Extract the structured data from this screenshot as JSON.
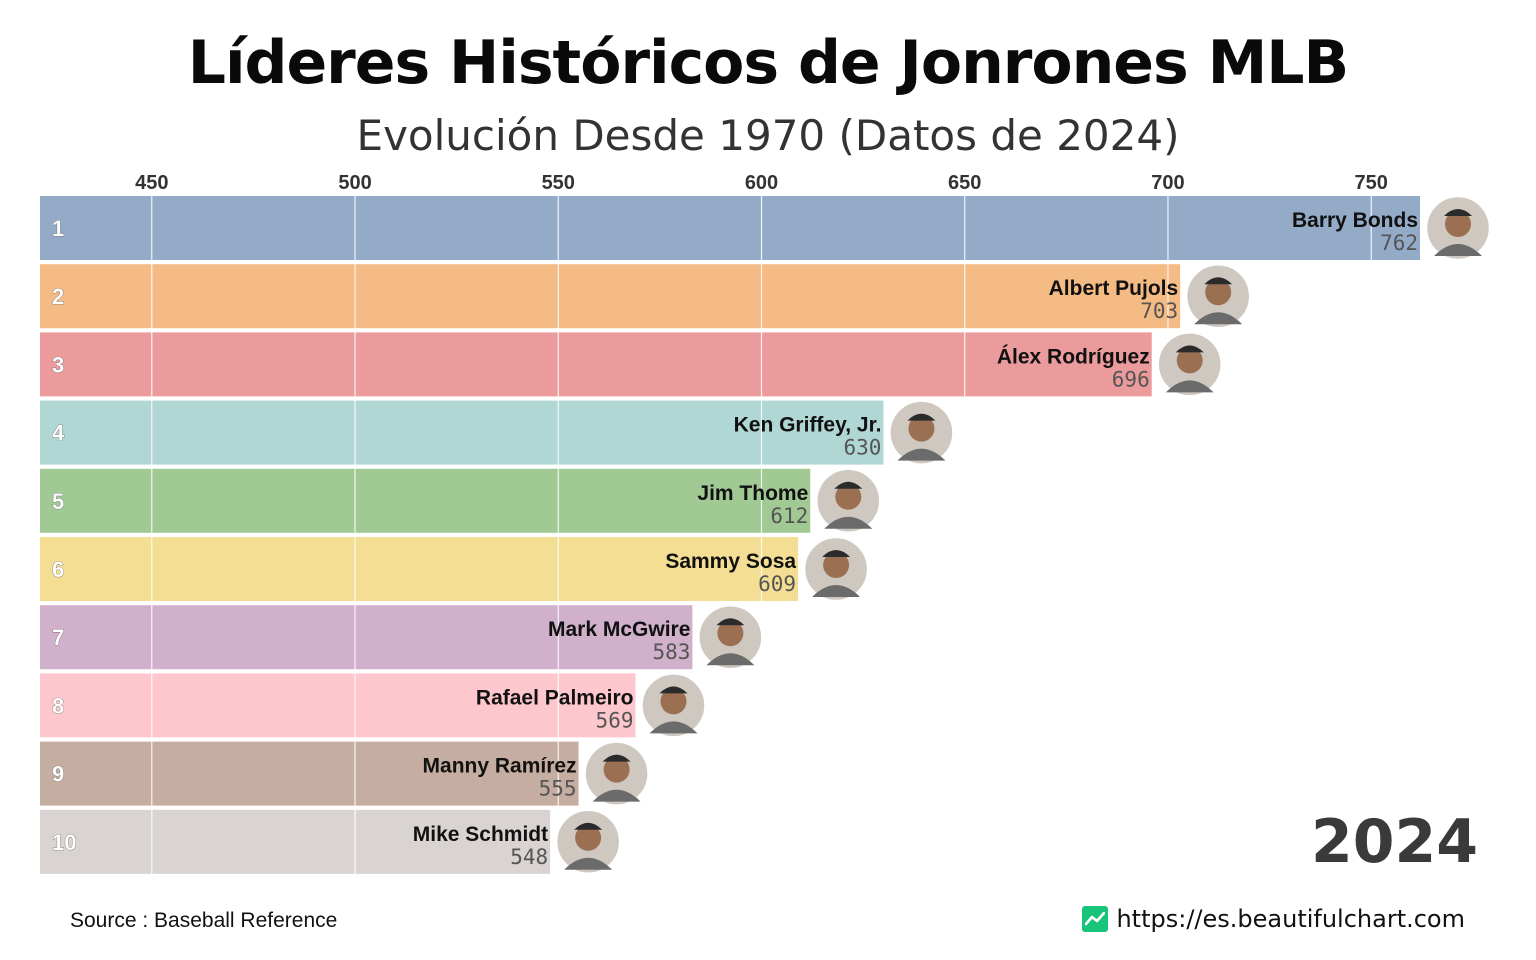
{
  "header": {
    "title": "Líderes Históricos de Jonrones MLB",
    "subtitle": "Evolución Desde 1970 (Datos de 2024)"
  },
  "chart_data": {
    "type": "bar",
    "orientation": "horizontal",
    "xlim": [
      422.5,
      762
    ],
    "x_ticks": [
      450,
      500,
      550,
      600,
      650,
      700,
      750
    ],
    "grid": true,
    "year": "2024",
    "bars": [
      {
        "rank": "1",
        "name": "Barry Bonds",
        "value": 762,
        "color": "#94abc8"
      },
      {
        "rank": "2",
        "name": "Albert Pujols",
        "value": 703,
        "color": "#f5bb84"
      },
      {
        "rank": "3",
        "name": "Álex Rodríguez",
        "value": 696,
        "color": "#ec9b9d"
      },
      {
        "rank": "4",
        "name": "Ken Griffey, Jr.",
        "value": 630,
        "color": "#b0d7d4"
      },
      {
        "rank": "5",
        "name": "Jim Thome",
        "value": 612,
        "color": "#a0c994"
      },
      {
        "rank": "6",
        "name": "Sammy Sosa",
        "value": 609,
        "color": "#f3de93"
      },
      {
        "rank": "7",
        "name": "Mark McGwire",
        "value": 583,
        "color": "#d1b0cb"
      },
      {
        "rank": "8",
        "name": "Rafael Palmeiro",
        "value": 569,
        "color": "#fec6cd"
      },
      {
        "rank": "9",
        "name": "Manny Ramírez",
        "value": 555,
        "color": "#c6ada2"
      },
      {
        "rank": "10",
        "name": "Mike Schmidt",
        "value": 548,
        "color": "#d9d4d2"
      }
    ]
  },
  "footer": {
    "source": "Source : Baseball Reference",
    "site": "https://es.beautifulchart.com",
    "site_icon": "chart-trend-icon"
  }
}
